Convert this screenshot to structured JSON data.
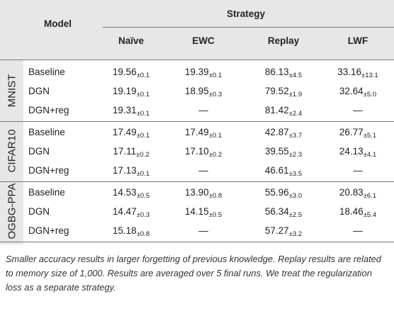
{
  "table": {
    "header": {
      "model": "Model",
      "strategy": "Strategy",
      "columns": [
        "Naïve",
        "EWC",
        "Replay",
        "LWF"
      ]
    },
    "groups": [
      {
        "name": "MNIST",
        "rows": [
          {
            "model": "Baseline",
            "cells": [
              {
                "value": "19.56",
                "std": "±0.1"
              },
              {
                "value": "19.39",
                "std": "±0.1"
              },
              {
                "value": "86.13",
                "std": "±4.5"
              },
              {
                "value": "33.16",
                "std": "±13.1"
              }
            ]
          },
          {
            "model": "DGN",
            "cells": [
              {
                "value": "19.19",
                "std": "±0.1"
              },
              {
                "value": "18.95",
                "std": "±0.3"
              },
              {
                "value": "79.52",
                "std": "±1.9"
              },
              {
                "value": "32.64",
                "std": "±5.0"
              }
            ]
          },
          {
            "model": "DGN+reg",
            "cells": [
              {
                "value": "19.31",
                "std": "±0.1"
              },
              {
                "value": "—"
              },
              {
                "value": "81.42",
                "std": "±2.4"
              },
              {
                "value": "—"
              }
            ]
          }
        ]
      },
      {
        "name": "CIFAR10",
        "rows": [
          {
            "model": "Baseline",
            "cells": [
              {
                "value": "17.49",
                "std": "±0.1"
              },
              {
                "value": "17.49",
                "std": "±0.1"
              },
              {
                "value": "42.87",
                "std": "±3.7"
              },
              {
                "value": "26.77",
                "std": "±5.1"
              }
            ]
          },
          {
            "model": "DGN",
            "cells": [
              {
                "value": "17.11",
                "std": "±0.2"
              },
              {
                "value": "17.10",
                "std": "±0.2"
              },
              {
                "value": "39.55",
                "std": "±2.3"
              },
              {
                "value": "24.13",
                "std": "±4.1"
              }
            ]
          },
          {
            "model": "DGN+reg",
            "cells": [
              {
                "value": "17.13",
                "std": "±0.1"
              },
              {
                "value": "—"
              },
              {
                "value": "46.61",
                "std": "±3.5"
              },
              {
                "value": "—"
              }
            ]
          }
        ]
      },
      {
        "name": "OGBG-PPA",
        "rows": [
          {
            "model": "Baseline",
            "cells": [
              {
                "value": "14.53",
                "std": "±0.5"
              },
              {
                "value": "13.90",
                "std": "±0.8"
              },
              {
                "value": "55.96",
                "std": "±3.0"
              },
              {
                "value": "20.83",
                "std": "±6.1"
              }
            ]
          },
          {
            "model": "DGN",
            "cells": [
              {
                "value": "14.47",
                "std": "±0.3"
              },
              {
                "value": "14.15",
                "std": "±0.5"
              },
              {
                "value": "56.34",
                "std": "±2.5"
              },
              {
                "value": "18.46",
                "std": "±5.4"
              }
            ]
          },
          {
            "model": "DGN+reg",
            "cells": [
              {
                "value": "15.18",
                "std": "±0.8"
              },
              {
                "value": "—"
              },
              {
                "value": "57.27",
                "std": "±3.2"
              },
              {
                "value": "—"
              }
            ]
          }
        ]
      }
    ],
    "caption": "Smaller accuracy results in larger forgetting of previous knowledge. Replay results are related to memory size of 1,000. Results are averaged over 5 final runs. We treat the regularization loss as a separate strategy."
  }
}
